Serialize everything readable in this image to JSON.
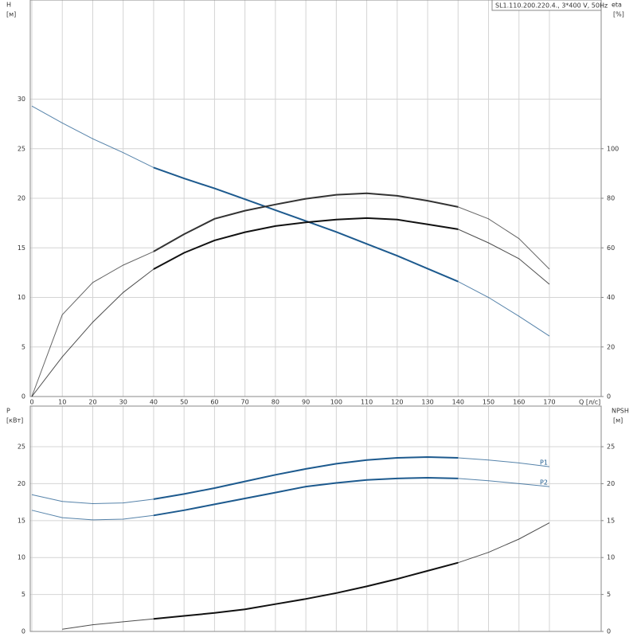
{
  "chart_data": [
    {
      "type": "line",
      "title": "SL1.110.200.220.4., 3*400 V, 50Hz",
      "y_label": "H",
      "y_unit": "[м]",
      "y2_label": "eta",
      "y2_unit": "[%]",
      "x_label": "Q [л/с]",
      "x": [
        0,
        10,
        20,
        30,
        40,
        50,
        60,
        70,
        80,
        90,
        100,
        110,
        120,
        130,
        140,
        150,
        160,
        170
      ],
      "xlim": [
        0,
        187
      ],
      "xticks": [
        0,
        10,
        20,
        30,
        40,
        50,
        60,
        70,
        80,
        90,
        100,
        110,
        120,
        130,
        140,
        150,
        160,
        170
      ],
      "ylim": [
        0,
        40
      ],
      "yticks": [
        0,
        5,
        10,
        15,
        20,
        25,
        30
      ],
      "y2lim": [
        0,
        160
      ],
      "y2ticks": [
        0,
        20,
        40,
        60,
        80,
        100
      ],
      "grid": true,
      "highlight_xlim": [
        40,
        140
      ],
      "series": [
        {
          "color": "#1d5a8e",
          "values": [
            29.3,
            27.6,
            26.0,
            24.6,
            23.1,
            22.0,
            21.0,
            19.9,
            18.8,
            17.7,
            16.6,
            15.4,
            14.2,
            12.9,
            11.6,
            10.0,
            8.1,
            6.1
          ]
        },
        {
          "color": "#333333",
          "axis": "y2",
          "values": [
            0,
            33,
            46,
            53,
            58.5,
            65.5,
            71.7,
            75,
            77.5,
            79.8,
            81.4,
            82,
            81,
            79,
            76.5,
            71.7,
            63.7,
            51.4
          ]
        },
        {
          "color": "#111111",
          "axis": "y2",
          "values": [
            0,
            16,
            30,
            42,
            51.4,
            58,
            63,
            66.3,
            68.8,
            70.3,
            71.4,
            72,
            71.4,
            69.5,
            67.5,
            62,
            55.6,
            45.3
          ]
        }
      ]
    },
    {
      "type": "line",
      "y_label": "P",
      "y_unit": "[кВт]",
      "y2_label": "NPSH",
      "y2_unit": "[м]",
      "x": [
        0,
        10,
        20,
        30,
        40,
        50,
        60,
        70,
        80,
        90,
        100,
        110,
        120,
        130,
        140,
        150,
        160,
        170
      ],
      "xlim": [
        0,
        187
      ],
      "ylim": [
        0,
        30.5
      ],
      "yticks": [
        0,
        5,
        10,
        15,
        20,
        25
      ],
      "y2lim": [
        0,
        30.5
      ],
      "y2ticks": [
        0,
        5,
        10,
        15,
        20,
        25
      ],
      "grid": true,
      "highlight_xlim": [
        40,
        140
      ],
      "series": [
        {
          "name": "P1",
          "color": "#1d5a8e",
          "values": [
            18.5,
            17.6,
            17.3,
            17.4,
            17.9,
            18.6,
            19.4,
            20.3,
            21.2,
            22.0,
            22.7,
            23.2,
            23.5,
            23.6,
            23.5,
            23.2,
            22.8,
            22.3
          ]
        },
        {
          "name": "P2",
          "color": "#1d5a8e",
          "values": [
            16.4,
            15.4,
            15.1,
            15.2,
            15.7,
            16.4,
            17.2,
            18.0,
            18.8,
            19.6,
            20.1,
            20.5,
            20.7,
            20.8,
            20.7,
            20.4,
            20.0,
            19.6
          ]
        },
        {
          "color": "#111111",
          "axis": "y2",
          "values": [
            null,
            0.3,
            0.9,
            1.3,
            1.7,
            2.1,
            2.5,
            3.0,
            3.7,
            4.4,
            5.2,
            6.1,
            7.1,
            8.2,
            9.3,
            10.7,
            12.5,
            14.7
          ]
        }
      ]
    }
  ]
}
